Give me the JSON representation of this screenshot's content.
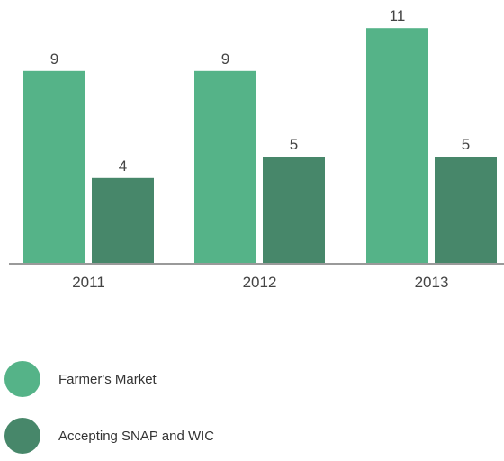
{
  "chart_data": {
    "type": "bar",
    "categories": [
      "2011",
      "2012",
      "2013"
    ],
    "series": [
      {
        "name": "Farmer's Market",
        "values": [
          9,
          9,
          11
        ],
        "color": "#55b388"
      },
      {
        "name": "Accepting SNAP and WIC",
        "values": [
          4,
          5,
          5
        ],
        "color": "#47876a"
      }
    ],
    "title": "",
    "xlabel": "",
    "ylabel": "",
    "ylim": [
      0,
      11.5
    ],
    "grid": false,
    "legend_placement": "bottom-left"
  },
  "colors": {
    "axis": "#9a9a9a",
    "label_text": "#444444"
  }
}
